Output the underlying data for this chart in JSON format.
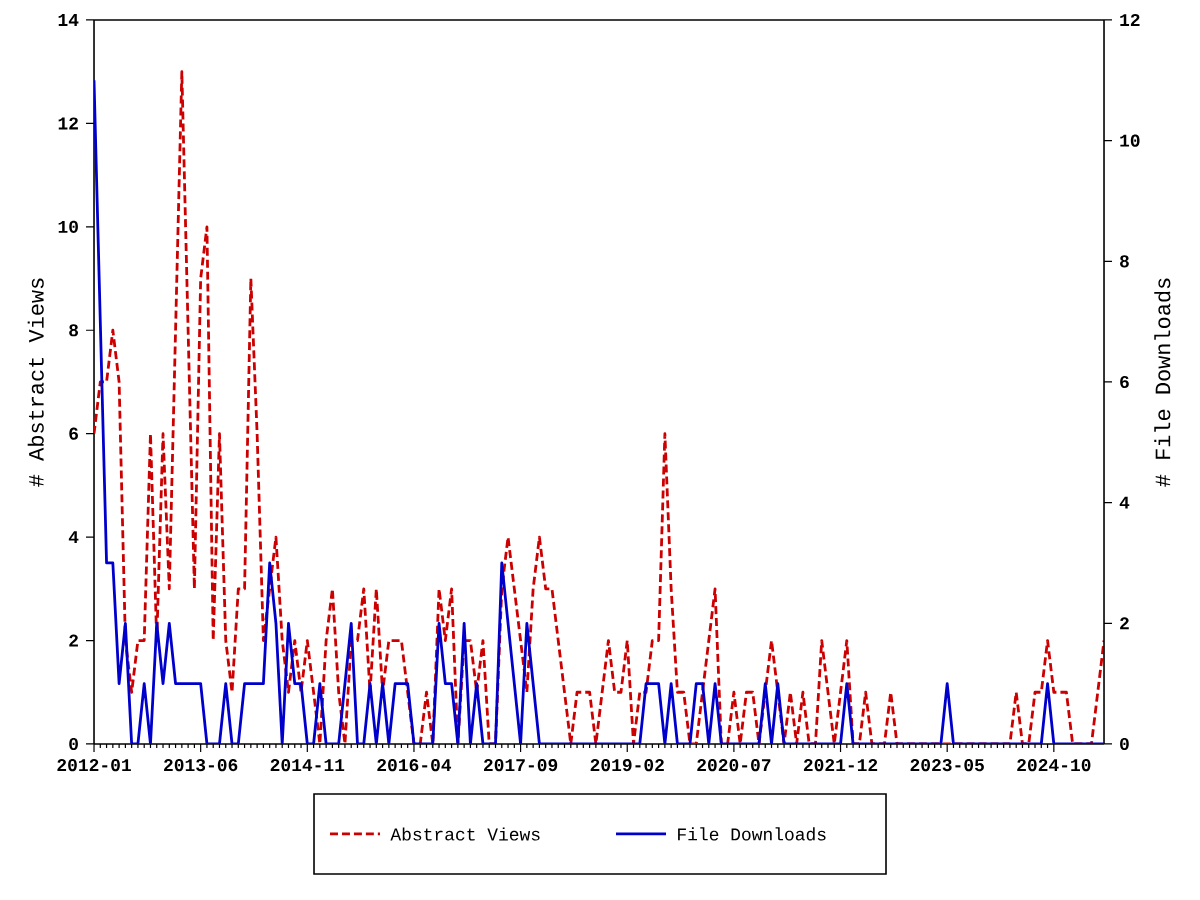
{
  "chart_data": {
    "type": "line",
    "xlabel": null,
    "ylabel": "# Abstract Views",
    "y2label": "# File Downloads",
    "xlim": [
      "2012-01",
      "2025-06"
    ],
    "xticks": [
      "2012-01",
      "2013-06",
      "2014-11",
      "2016-04",
      "2017-09",
      "2019-02",
      "2020-07",
      "2021-12",
      "2023-05",
      "2024-10"
    ],
    "ylim": [
      0,
      14
    ],
    "yticks": [
      0,
      2,
      4,
      6,
      8,
      10,
      12,
      14
    ],
    "y2lim": [
      0,
      12
    ],
    "y2ticks": [
      0,
      2,
      4,
      6,
      8,
      10,
      12
    ],
    "legend": "bottom",
    "grid": false,
    "x": [
      "2012-01",
      "2012-02",
      "2012-03",
      "2012-04",
      "2012-05",
      "2012-06",
      "2012-07",
      "2012-08",
      "2012-09",
      "2012-10",
      "2012-11",
      "2012-12",
      "2013-01",
      "2013-02",
      "2013-03",
      "2013-04",
      "2013-05",
      "2013-06",
      "2013-07",
      "2013-08",
      "2013-09",
      "2013-10",
      "2013-11",
      "2013-12",
      "2014-01",
      "2014-02",
      "2014-03",
      "2014-04",
      "2014-05",
      "2014-06",
      "2014-07",
      "2014-08",
      "2014-09",
      "2014-10",
      "2014-11",
      "2014-12",
      "2015-01",
      "2015-02",
      "2015-03",
      "2015-04",
      "2015-05",
      "2015-06",
      "2015-07",
      "2015-08",
      "2015-09",
      "2015-10",
      "2015-11",
      "2015-12",
      "2016-01",
      "2016-02",
      "2016-03",
      "2016-04",
      "2016-05",
      "2016-06",
      "2016-07",
      "2016-08",
      "2016-09",
      "2016-10",
      "2016-11",
      "2016-12",
      "2017-01",
      "2017-02",
      "2017-03",
      "2017-04",
      "2017-05",
      "2017-06",
      "2017-07",
      "2017-08",
      "2017-09",
      "2017-10",
      "2017-11",
      "2017-12",
      "2018-01",
      "2018-02",
      "2018-03",
      "2018-04",
      "2018-05",
      "2018-06",
      "2018-07",
      "2018-08",
      "2018-09",
      "2018-10",
      "2018-11",
      "2018-12",
      "2019-01",
      "2019-02",
      "2019-03",
      "2019-04",
      "2019-05",
      "2019-06",
      "2019-07",
      "2019-08",
      "2019-09",
      "2019-10",
      "2019-11",
      "2019-12",
      "2020-01",
      "2020-02",
      "2020-03",
      "2020-04",
      "2020-05",
      "2020-06",
      "2020-07",
      "2020-08",
      "2020-09",
      "2020-10",
      "2020-11",
      "2020-12",
      "2021-01",
      "2021-02",
      "2021-03",
      "2021-04",
      "2021-05",
      "2021-06",
      "2021-07",
      "2021-08",
      "2021-09",
      "2021-10",
      "2021-11",
      "2021-12",
      "2022-01",
      "2022-02",
      "2022-03",
      "2022-04",
      "2022-05",
      "2022-06",
      "2022-07",
      "2022-08",
      "2022-09",
      "2022-10",
      "2022-11",
      "2022-12",
      "2023-01",
      "2023-02",
      "2023-03",
      "2023-04",
      "2023-05",
      "2023-06",
      "2023-07",
      "2023-08",
      "2023-09",
      "2023-10",
      "2023-11",
      "2023-12",
      "2024-01",
      "2024-02",
      "2024-03",
      "2024-04",
      "2024-05",
      "2024-06",
      "2024-07",
      "2024-08",
      "2024-09",
      "2024-10",
      "2024-11",
      "2024-12",
      "2025-01",
      "2025-02",
      "2025-03",
      "2025-04",
      "2025-05",
      "2025-06"
    ],
    "series": [
      {
        "name": "Abstract Views",
        "color": "#cc0000",
        "line_style": "dashed",
        "axis": "y",
        "values": [
          6,
          7,
          7,
          8,
          7,
          2,
          1,
          2,
          2,
          6,
          2,
          6,
          3,
          8,
          13,
          8,
          3,
          9,
          10,
          2,
          6,
          2,
          1,
          3,
          3,
          9,
          6,
          2,
          3,
          4,
          2,
          1,
          2,
          1,
          2,
          1,
          0,
          2,
          3,
          1,
          0,
          2,
          2,
          3,
          1,
          3,
          1,
          2,
          2,
          2,
          1,
          0,
          0,
          1,
          0,
          3,
          2,
          3,
          0,
          2,
          2,
          1,
          2,
          0,
          0,
          3,
          4,
          3,
          2,
          1,
          3,
          4,
          3,
          3,
          2,
          1,
          0,
          1,
          1,
          1,
          0,
          1,
          2,
          1,
          1,
          2,
          0,
          1,
          1,
          2,
          2,
          6,
          3,
          1,
          1,
          0,
          0,
          1,
          2,
          3,
          0,
          0,
          1,
          0,
          1,
          1,
          0,
          1,
          2,
          1,
          0,
          1,
          0,
          1,
          0,
          0,
          2,
          1,
          0,
          1,
          2,
          0,
          0,
          1,
          0,
          0,
          0,
          1,
          0,
          0,
          0,
          0,
          0,
          0,
          0,
          0,
          0,
          0,
          0,
          0,
          0,
          0,
          0,
          0,
          0,
          0,
          0,
          1,
          0,
          0,
          1,
          1,
          2,
          1,
          1,
          1,
          0,
          0,
          0,
          0,
          1,
          2
        ]
      },
      {
        "name": "File Downloads",
        "color": "#0000cc",
        "line_style": "solid",
        "axis": "y2",
        "values": [
          11,
          7,
          3,
          3,
          1,
          2,
          0,
          0,
          1,
          0,
          2,
          1,
          2,
          1,
          1,
          1,
          1,
          1,
          0,
          0,
          0,
          1,
          0,
          0,
          1,
          1,
          1,
          1,
          3,
          2,
          0,
          2,
          1,
          1,
          0,
          0,
          1,
          0,
          0,
          0,
          1,
          2,
          0,
          0,
          1,
          0,
          1,
          0,
          1,
          1,
          1,
          0,
          0,
          0,
          0,
          2,
          1,
          1,
          0,
          2,
          0,
          1,
          0,
          0,
          0,
          3,
          2,
          1,
          0,
          2,
          1,
          0,
          0,
          0,
          0,
          0,
          0,
          0,
          0,
          0,
          0,
          0,
          0,
          0,
          0,
          0,
          0,
          0,
          1,
          1,
          1,
          0,
          1,
          0,
          0,
          0,
          1,
          1,
          0,
          1,
          0,
          0,
          0,
          0,
          0,
          0,
          0,
          1,
          0,
          1,
          0,
          0,
          0,
          0,
          0,
          0,
          0,
          0,
          0,
          0,
          1,
          0,
          0,
          0,
          0,
          0,
          0,
          0,
          0,
          0,
          0,
          0,
          0,
          0,
          0,
          0,
          1,
          0,
          0,
          0,
          0,
          0,
          0,
          0,
          0,
          0,
          0,
          0,
          0,
          0,
          0,
          0,
          1,
          0,
          0,
          0,
          0,
          0,
          0,
          0,
          0,
          0
        ]
      }
    ]
  }
}
